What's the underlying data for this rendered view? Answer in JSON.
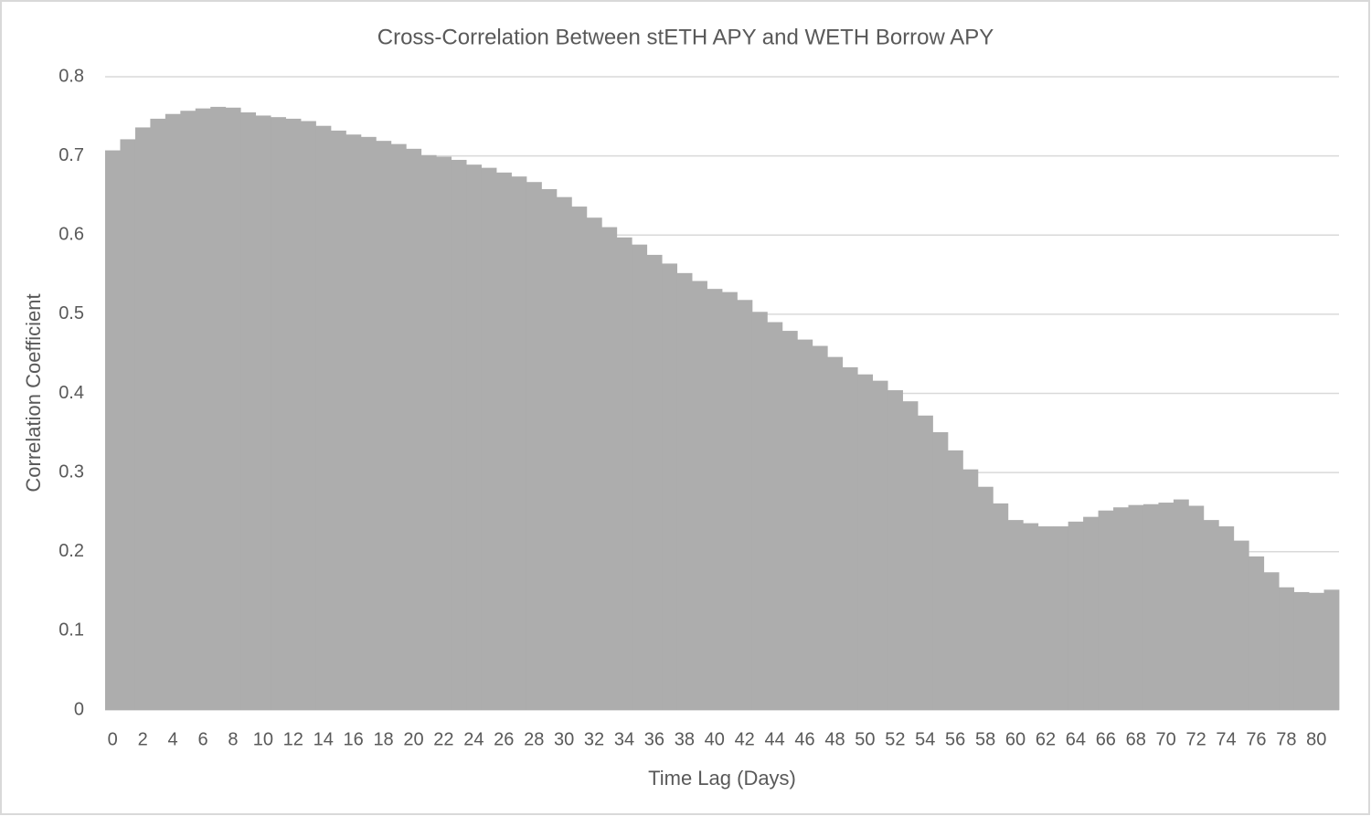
{
  "chart_data": {
    "type": "bar",
    "title": "Cross-Correlation Between stETH APY and WETH Borrow APY",
    "x_label": "Time Lag (Days)",
    "y_label": "Correlation Coefficient",
    "categories": [
      "0",
      null,
      "2",
      null,
      "4",
      null,
      "6",
      null,
      "8",
      null,
      "10",
      null,
      "12",
      null,
      "14",
      null,
      "16",
      null,
      "18",
      null,
      "20",
      null,
      "22",
      null,
      "24",
      null,
      "26",
      null,
      "28",
      null,
      "30",
      null,
      "32",
      null,
      "34",
      null,
      "36",
      null,
      "38",
      null,
      "40",
      null,
      "42",
      null,
      "44",
      null,
      "46",
      null,
      "48",
      null,
      "50",
      null,
      "52",
      null,
      "54",
      null,
      "56",
      null,
      "58",
      null,
      "60",
      null,
      "62",
      null,
      "64",
      null,
      "66",
      null,
      "68",
      null,
      "70",
      null,
      "72",
      null,
      "74",
      null,
      "76",
      null,
      "78",
      null,
      "80",
      null
    ],
    "values": [
      0.707,
      0.721,
      0.736,
      0.747,
      0.753,
      0.757,
      0.76,
      0.762,
      0.761,
      0.755,
      0.751,
      0.749,
      0.747,
      0.744,
      0.738,
      0.732,
      0.727,
      0.724,
      0.719,
      0.715,
      0.709,
      0.701,
      0.699,
      0.695,
      0.689,
      0.685,
      0.679,
      0.674,
      0.667,
      0.658,
      0.648,
      0.636,
      0.622,
      0.61,
      0.597,
      0.588,
      0.575,
      0.564,
      0.552,
      0.542,
      0.532,
      0.528,
      0.518,
      0.503,
      0.49,
      0.479,
      0.468,
      0.46,
      0.446,
      0.433,
      0.424,
      0.416,
      0.404,
      0.39,
      0.372,
      0.351,
      0.328,
      0.304,
      0.282,
      0.261,
      0.24,
      0.236,
      0.232,
      0.232,
      0.238,
      0.244,
      0.252,
      0.256,
      0.259,
      0.26,
      0.262,
      0.266,
      0.258,
      0.24,
      0.232,
      0.214,
      0.194,
      0.174,
      0.155,
      0.149,
      0.148,
      0.152
    ],
    "color": "#adadad",
    "ylim": [
      0,
      0.8
    ],
    "yticks": [
      0,
      0.1,
      0.2,
      0.3,
      0.4,
      0.5,
      0.6,
      0.7,
      0.8
    ],
    "grid": true
  }
}
